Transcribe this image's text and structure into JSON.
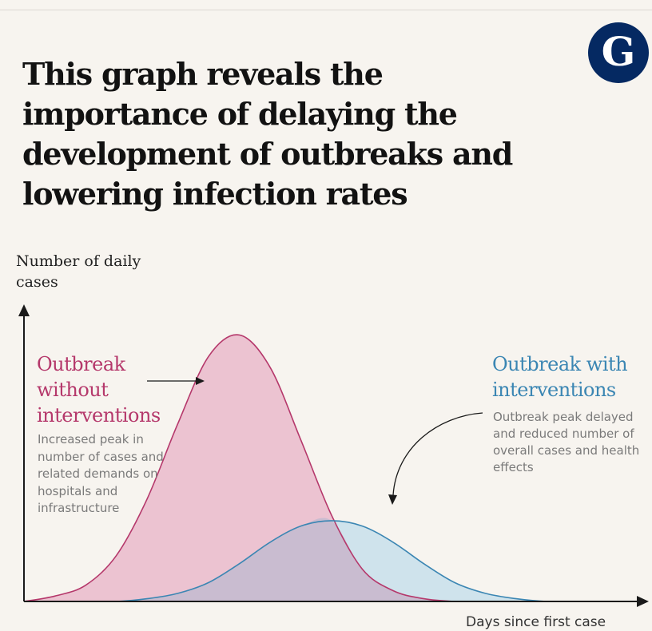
{
  "headline": "This graph reveals the importance of delaying the development of outbreaks and lowering infection rates",
  "logo": {
    "letter": "G",
    "icon": "guardian-logo-icon",
    "color": "#052962"
  },
  "colors": {
    "without": "#b5386b",
    "without_fill": "#ecc3d1",
    "with": "#3b86b3",
    "with_fill": "#cfe3ec",
    "overlap_fill": "#c9bcd0",
    "axis": "#1a1a1a",
    "note": "#7a7a7a"
  },
  "chart_data": {
    "type": "area",
    "ylabel": "Number of daily cases",
    "xlabel": "Days since first case",
    "xlim": [
      0,
      100
    ],
    "ylim": [
      0,
      100
    ],
    "grid": false,
    "legend": "inline",
    "series": [
      {
        "name": "Outbreak without interventions",
        "annotation": "Increased peak in number of cases and related demands on hospitals and infrastructure",
        "x": [
          0,
          5,
          10,
          15,
          20,
          25,
          30,
          35,
          40,
          45,
          50,
          55,
          60,
          65,
          70,
          75,
          80,
          85,
          90,
          95,
          100
        ],
        "values": [
          0,
          2,
          6,
          17,
          38,
          66,
          91,
          99,
          87,
          60,
          32,
          12,
          4,
          1,
          0,
          0,
          0,
          0,
          0,
          0,
          0
        ]
      },
      {
        "name": "Outbreak with interventions",
        "annotation": "Outbreak peak delayed and reduced number of overall cases and health effects",
        "x": [
          0,
          5,
          10,
          15,
          20,
          25,
          30,
          35,
          40,
          45,
          50,
          55,
          60,
          65,
          70,
          75,
          80,
          85,
          90,
          95,
          100
        ],
        "values": [
          0,
          0,
          0,
          0,
          1,
          3,
          7,
          14,
          22,
          28,
          30,
          28,
          22,
          14,
          7,
          3,
          1,
          0,
          0,
          0,
          0
        ]
      }
    ]
  }
}
